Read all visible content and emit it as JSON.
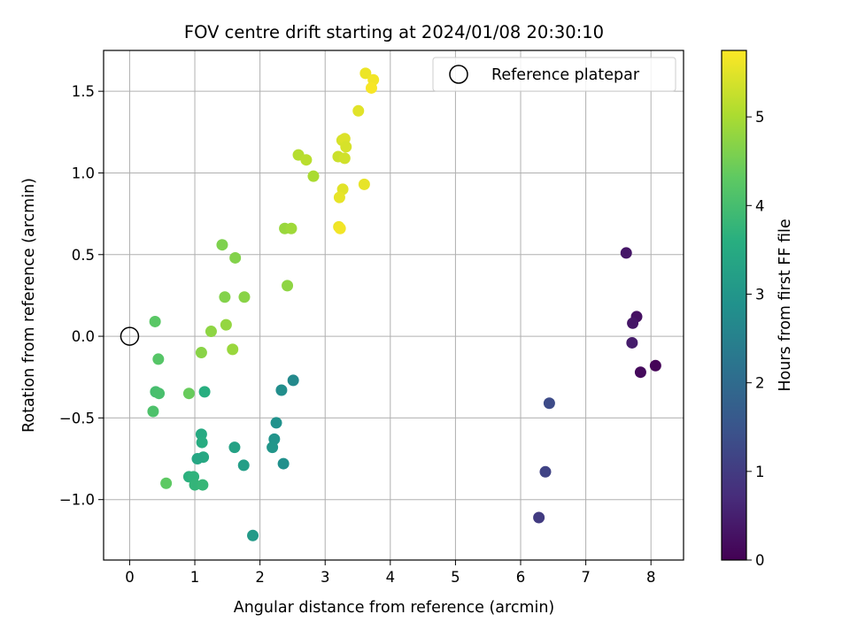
{
  "chart_data": {
    "type": "scatter",
    "title": "FOV centre drift starting at 2024/01/08 20:30:10",
    "xlabel": "Angular distance from reference (arcmin)",
    "ylabel": "Rotation from reference (arcmin)",
    "colorbar_label": "Hours from first FF file",
    "colormap": "viridis",
    "xlim": [
      -0.4,
      8.5
    ],
    "ylim": [
      -1.37,
      1.75
    ],
    "clim": [
      0,
      5.75
    ],
    "xticks": [
      0,
      1,
      2,
      3,
      4,
      5,
      6,
      7,
      8
    ],
    "xtick_labels": [
      "0",
      "1",
      "2",
      "3",
      "4",
      "5",
      "6",
      "7",
      "8"
    ],
    "yticks": [
      -1.0,
      -0.5,
      0.0,
      0.5,
      1.0,
      1.5
    ],
    "ytick_labels": [
      "−1.0",
      "−0.5",
      "0.0",
      "0.5",
      "1.0",
      "1.5"
    ],
    "cticks": [
      0,
      1,
      2,
      3,
      4,
      5
    ],
    "ctick_labels": [
      "0",
      "1",
      "2",
      "3",
      "4",
      "5"
    ],
    "grid": true,
    "legend": {
      "placement": "top-right",
      "label": "Reference platepar"
    },
    "reference_point": {
      "x": 0,
      "y": 0
    },
    "points": [
      {
        "x": 7.62,
        "y": 0.51,
        "c": 0.35
      },
      {
        "x": 7.78,
        "y": 0.12,
        "c": 0.25
      },
      {
        "x": 7.72,
        "y": 0.08,
        "c": 0.35
      },
      {
        "x": 7.71,
        "y": -0.04,
        "c": 0.45
      },
      {
        "x": 8.07,
        "y": -0.18,
        "c": 0.05
      },
      {
        "x": 7.84,
        "y": -0.22,
        "c": 0.15
      },
      {
        "x": 6.44,
        "y": -0.41,
        "c": 1.3
      },
      {
        "x": 6.38,
        "y": -0.83,
        "c": 1.15
      },
      {
        "x": 6.28,
        "y": -1.11,
        "c": 1.0
      },
      {
        "x": 2.51,
        "y": -0.27,
        "c": 2.7
      },
      {
        "x": 2.33,
        "y": -0.33,
        "c": 2.8
      },
      {
        "x": 2.25,
        "y": -0.53,
        "c": 2.9
      },
      {
        "x": 2.22,
        "y": -0.63,
        "c": 2.95
      },
      {
        "x": 2.19,
        "y": -0.68,
        "c": 3.0
      },
      {
        "x": 2.36,
        "y": -0.78,
        "c": 2.85
      },
      {
        "x": 1.89,
        "y": -1.22,
        "c": 3.1
      },
      {
        "x": 1.61,
        "y": -0.68,
        "c": 3.3
      },
      {
        "x": 1.75,
        "y": -0.79,
        "c": 3.2
      },
      {
        "x": 1.15,
        "y": -0.34,
        "c": 3.6
      },
      {
        "x": 1.1,
        "y": -0.6,
        "c": 3.5
      },
      {
        "x": 1.11,
        "y": -0.65,
        "c": 3.55
      },
      {
        "x": 1.13,
        "y": -0.74,
        "c": 3.45
      },
      {
        "x": 1.04,
        "y": -0.75,
        "c": 3.4
      },
      {
        "x": 0.91,
        "y": -0.86,
        "c": 3.65
      },
      {
        "x": 0.98,
        "y": -0.86,
        "c": 3.7
      },
      {
        "x": 1.0,
        "y": -0.91,
        "c": 3.75
      },
      {
        "x": 1.12,
        "y": -0.91,
        "c": 3.8
      },
      {
        "x": 0.91,
        "y": -0.35,
        "c": 4.4
      },
      {
        "x": 0.56,
        "y": -0.9,
        "c": 4.3
      },
      {
        "x": 0.4,
        "y": -0.34,
        "c": 4.0
      },
      {
        "x": 0.45,
        "y": -0.35,
        "c": 4.05
      },
      {
        "x": 0.36,
        "y": -0.46,
        "c": 4.1
      },
      {
        "x": 0.44,
        "y": -0.14,
        "c": 4.2
      },
      {
        "x": 0.39,
        "y": 0.09,
        "c": 4.25
      },
      {
        "x": 1.1,
        "y": -0.1,
        "c": 4.7
      },
      {
        "x": 1.25,
        "y": 0.03,
        "c": 4.75
      },
      {
        "x": 1.48,
        "y": 0.07,
        "c": 4.8
      },
      {
        "x": 1.58,
        "y": -0.08,
        "c": 4.85
      },
      {
        "x": 1.46,
        "y": 0.24,
        "c": 4.65
      },
      {
        "x": 1.76,
        "y": 0.24,
        "c": 4.7
      },
      {
        "x": 1.42,
        "y": 0.56,
        "c": 4.6
      },
      {
        "x": 1.62,
        "y": 0.48,
        "c": 4.65
      },
      {
        "x": 2.42,
        "y": 0.31,
        "c": 4.75
      },
      {
        "x": 2.38,
        "y": 0.66,
        "c": 4.85
      },
      {
        "x": 2.48,
        "y": 0.66,
        "c": 4.9
      },
      {
        "x": 2.82,
        "y": 0.98,
        "c": 5.0
      },
      {
        "x": 2.59,
        "y": 1.11,
        "c": 5.1
      },
      {
        "x": 2.71,
        "y": 1.08,
        "c": 5.15
      },
      {
        "x": 3.2,
        "y": 1.1,
        "c": 5.3
      },
      {
        "x": 3.3,
        "y": 1.09,
        "c": 5.35
      },
      {
        "x": 3.26,
        "y": 1.2,
        "c": 5.4
      },
      {
        "x": 3.3,
        "y": 1.21,
        "c": 5.45
      },
      {
        "x": 3.32,
        "y": 1.16,
        "c": 5.4
      },
      {
        "x": 3.27,
        "y": 0.9,
        "c": 5.5
      },
      {
        "x": 3.22,
        "y": 0.85,
        "c": 5.55
      },
      {
        "x": 3.21,
        "y": 0.67,
        "c": 5.6
      },
      {
        "x": 3.23,
        "y": 0.66,
        "c": 5.65
      },
      {
        "x": 3.6,
        "y": 0.93,
        "c": 5.55
      },
      {
        "x": 3.51,
        "y": 1.38,
        "c": 5.5
      },
      {
        "x": 3.62,
        "y": 1.61,
        "c": 5.6
      },
      {
        "x": 3.74,
        "y": 1.57,
        "c": 5.65
      },
      {
        "x": 3.71,
        "y": 1.52,
        "c": 5.7
      }
    ]
  }
}
